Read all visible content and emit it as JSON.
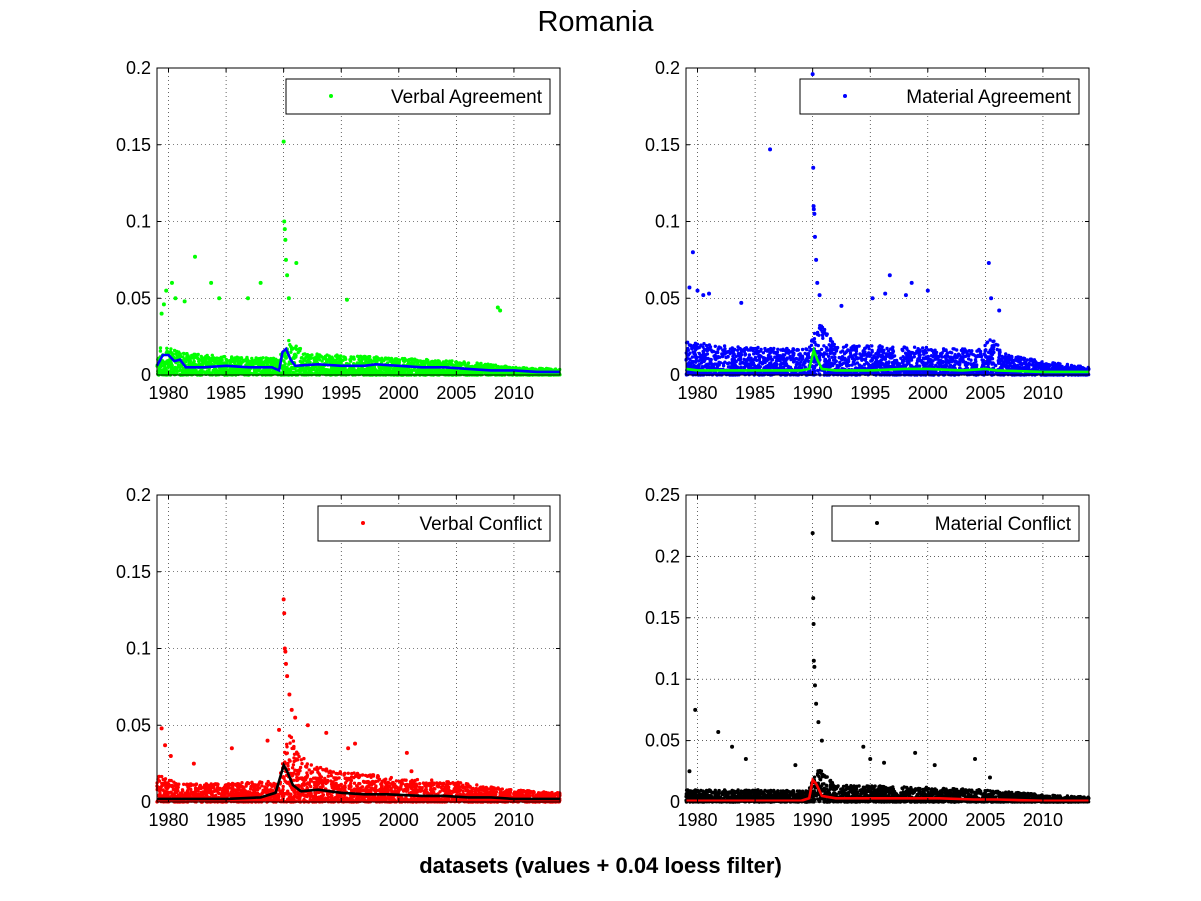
{
  "figure": {
    "title": "Romania",
    "xlabel": "datasets (values + 0.04 loess filter)"
  },
  "chart_data": [
    {
      "type": "scatter",
      "legend": "Verbal Agreement",
      "legend_position": "top-right",
      "point_color": "#00ff00",
      "trend_color": "#0000ff",
      "grid": true,
      "xlim": [
        1979,
        2014
      ],
      "ylim": [
        0,
        0.2
      ],
      "xticks": [
        1980,
        1985,
        1990,
        1995,
        2000,
        2005,
        2010
      ],
      "yticks": [
        0,
        0.05,
        0.1,
        0.15,
        0.2
      ],
      "ytick_labels": [
        "0",
        "0.05",
        "0.1",
        "0.15",
        "0.2"
      ],
      "baseline": [
        [
          1979,
          0.02
        ],
        [
          1981,
          0.015
        ],
        [
          1985,
          0.012
        ],
        [
          1989.5,
          0.011
        ],
        [
          1990.5,
          0.024
        ],
        [
          1992,
          0.014
        ],
        [
          2000,
          0.011
        ],
        [
          2005,
          0.009
        ],
        [
          2008,
          0.007
        ],
        [
          2010,
          0.005
        ],
        [
          2014,
          0.004
        ]
      ],
      "spikes": [
        [
          1979.4,
          0.04
        ],
        [
          1979.6,
          0.046
        ],
        [
          1979.8,
          0.055
        ],
        [
          1980.3,
          0.06
        ],
        [
          1980.6,
          0.05
        ],
        [
          1981.4,
          0.048
        ],
        [
          1982.3,
          0.077
        ],
        [
          1983.7,
          0.06
        ],
        [
          1984.4,
          0.05
        ],
        [
          1986.9,
          0.05
        ],
        [
          1988,
          0.06
        ],
        [
          1990,
          0.152
        ],
        [
          1990.05,
          0.1
        ],
        [
          1990.1,
          0.095
        ],
        [
          1990.15,
          0.088
        ],
        [
          1990.2,
          0.075
        ],
        [
          1990.3,
          0.065
        ],
        [
          1990.45,
          0.05
        ],
        [
          1991.1,
          0.073
        ],
        [
          1995.5,
          0.049
        ],
        [
          2008.6,
          0.044
        ],
        [
          2008.8,
          0.042
        ]
      ],
      "trend": [
        [
          1979,
          0.006
        ],
        [
          1979.5,
          0.013
        ],
        [
          1980,
          0.013
        ],
        [
          1980.5,
          0.009
        ],
        [
          1981,
          0.01
        ],
        [
          1981.5,
          0.005
        ],
        [
          1983,
          0.005
        ],
        [
          1985,
          0.006
        ],
        [
          1987,
          0.005
        ],
        [
          1989,
          0.005
        ],
        [
          1989.6,
          0.003
        ],
        [
          1989.9,
          0.015
        ],
        [
          1990.2,
          0.017
        ],
        [
          1990.6,
          0.01
        ],
        [
          1991,
          0.006
        ],
        [
          1993,
          0.007
        ],
        [
          1995,
          0.006
        ],
        [
          1997,
          0.006
        ],
        [
          1998,
          0.007
        ],
        [
          2000,
          0.006
        ],
        [
          2002,
          0.005
        ],
        [
          2004,
          0.005
        ],
        [
          2006,
          0.004
        ],
        [
          2008,
          0.003
        ],
        [
          2010,
          0.003
        ],
        [
          2012,
          0.002
        ],
        [
          2014,
          0.002
        ]
      ]
    },
    {
      "type": "scatter",
      "legend": "Material Agreement",
      "legend_position": "top-right",
      "point_color": "#0000ff",
      "trend_color": "#00ff00",
      "grid": true,
      "xlim": [
        1979,
        2014
      ],
      "ylim": [
        0,
        0.2
      ],
      "xticks": [
        1980,
        1985,
        1990,
        1995,
        2000,
        2005,
        2010
      ],
      "yticks": [
        0,
        0.05,
        0.1,
        0.15,
        0.2
      ],
      "ytick_labels": [
        "0",
        "0.05",
        "0.1",
        "0.15",
        "0.2"
      ],
      "baseline": [
        [
          1979,
          0.022
        ],
        [
          1981,
          0.02
        ],
        [
          1985,
          0.018
        ],
        [
          1989.5,
          0.017
        ],
        [
          1990.5,
          0.035
        ],
        [
          1992,
          0.02
        ],
        [
          2000,
          0.018
        ],
        [
          2004.5,
          0.017
        ],
        [
          2005.5,
          0.025
        ],
        [
          2007,
          0.013
        ],
        [
          2010,
          0.009
        ],
        [
          2014,
          0.005
        ]
      ],
      "spikes": [
        [
          1979.3,
          0.057
        ],
        [
          1979.6,
          0.08
        ],
        [
          1980,
          0.055
        ],
        [
          1980.5,
          0.052
        ],
        [
          1981,
          0.053
        ],
        [
          1983.8,
          0.047
        ],
        [
          1986.3,
          0.147
        ],
        [
          1990,
          0.196
        ],
        [
          1990.05,
          0.135
        ],
        [
          1990.08,
          0.11
        ],
        [
          1990.1,
          0.108
        ],
        [
          1990.15,
          0.105
        ],
        [
          1990.2,
          0.09
        ],
        [
          1990.3,
          0.075
        ],
        [
          1990.4,
          0.06
        ],
        [
          1990.6,
          0.052
        ],
        [
          1992.5,
          0.045
        ],
        [
          1995.2,
          0.05
        ],
        [
          1996.3,
          0.053
        ],
        [
          1996.7,
          0.065
        ],
        [
          1998.1,
          0.052
        ],
        [
          1998.6,
          0.06
        ],
        [
          2000,
          0.055
        ],
        [
          2005.3,
          0.073
        ],
        [
          2005.5,
          0.05
        ],
        [
          2006.2,
          0.042
        ]
      ],
      "trend": [
        [
          1979,
          0.004
        ],
        [
          1980,
          0.003
        ],
        [
          1985,
          0.003
        ],
        [
          1989,
          0.003
        ],
        [
          1989.7,
          0.004
        ],
        [
          1990.1,
          0.016
        ],
        [
          1990.4,
          0.01
        ],
        [
          1990.8,
          0.004
        ],
        [
          1992,
          0.003
        ],
        [
          1995,
          0.003
        ],
        [
          1998,
          0.004
        ],
        [
          2000,
          0.004
        ],
        [
          2003,
          0.003
        ],
        [
          2005,
          0.004
        ],
        [
          2006,
          0.003
        ],
        [
          2010,
          0.002
        ],
        [
          2014,
          0.002
        ]
      ]
    },
    {
      "type": "scatter",
      "legend": "Verbal Conflict",
      "legend_position": "top-right",
      "point_color": "#ff0000",
      "trend_color": "#000000",
      "grid": true,
      "xlim": [
        1979,
        2014
      ],
      "ylim": [
        0,
        0.2
      ],
      "xticks": [
        1980,
        1985,
        1990,
        1995,
        2000,
        2005,
        2010
      ],
      "yticks": [
        0,
        0.05,
        0.1,
        0.15,
        0.2
      ],
      "ytick_labels": [
        "0",
        "0.05",
        "0.1",
        "0.15",
        "0.2"
      ],
      "baseline": [
        [
          1979,
          0.018
        ],
        [
          1981,
          0.012
        ],
        [
          1985,
          0.012
        ],
        [
          1989.5,
          0.014
        ],
        [
          1990.5,
          0.045
        ],
        [
          1992,
          0.025
        ],
        [
          1995,
          0.02
        ],
        [
          2000,
          0.016
        ],
        [
          2005,
          0.013
        ],
        [
          2010,
          0.008
        ],
        [
          2014,
          0.006
        ]
      ],
      "spikes": [
        [
          1979.4,
          0.048
        ],
        [
          1979.7,
          0.037
        ],
        [
          1980.2,
          0.03
        ],
        [
          1982.2,
          0.025
        ],
        [
          1985.5,
          0.035
        ],
        [
          1988.6,
          0.04
        ],
        [
          1989.6,
          0.047
        ],
        [
          1990,
          0.132
        ],
        [
          1990.05,
          0.123
        ],
        [
          1990.1,
          0.1
        ],
        [
          1990.15,
          0.098
        ],
        [
          1990.2,
          0.09
        ],
        [
          1990.3,
          0.082
        ],
        [
          1990.5,
          0.07
        ],
        [
          1990.7,
          0.06
        ],
        [
          1991,
          0.055
        ],
        [
          1992.1,
          0.05
        ],
        [
          1993.7,
          0.045
        ],
        [
          1995.6,
          0.035
        ],
        [
          1996.2,
          0.038
        ],
        [
          2000.7,
          0.032
        ],
        [
          2001.1,
          0.02
        ]
      ],
      "trend": [
        [
          1979,
          0.002
        ],
        [
          1980,
          0.002
        ],
        [
          1985,
          0.002
        ],
        [
          1988,
          0.003
        ],
        [
          1989.3,
          0.006
        ],
        [
          1990,
          0.024
        ],
        [
          1990.3,
          0.02
        ],
        [
          1990.8,
          0.011
        ],
        [
          1991.5,
          0.007
        ],
        [
          1993,
          0.008
        ],
        [
          1995,
          0.006
        ],
        [
          1997,
          0.005
        ],
        [
          1999,
          0.005
        ],
        [
          2002,
          0.004
        ],
        [
          2004,
          0.004
        ],
        [
          2006,
          0.003
        ],
        [
          2008,
          0.003
        ],
        [
          2010,
          0.002
        ],
        [
          2014,
          0.002
        ]
      ]
    },
    {
      "type": "scatter",
      "legend": "Material Conflict",
      "legend_position": "top-right",
      "point_color": "#000000",
      "trend_color": "#ff0000",
      "grid": true,
      "xlim": [
        1979,
        2014
      ],
      "ylim": [
        0,
        0.25
      ],
      "xticks": [
        1980,
        1985,
        1990,
        1995,
        2000,
        2005,
        2010
      ],
      "yticks": [
        0,
        0.05,
        0.1,
        0.15,
        0.2,
        0.25
      ],
      "ytick_labels": [
        "0",
        "0.05",
        "0.1",
        "0.15",
        "0.2",
        "0.25"
      ],
      "baseline": [
        [
          1979,
          0.01
        ],
        [
          1985,
          0.01
        ],
        [
          1989.5,
          0.009
        ],
        [
          1990.5,
          0.028
        ],
        [
          1992,
          0.014
        ],
        [
          2000,
          0.012
        ],
        [
          2005,
          0.01
        ],
        [
          2010,
          0.006
        ],
        [
          2014,
          0.004
        ]
      ],
      "spikes": [
        [
          1979.3,
          0.025
        ],
        [
          1979.8,
          0.075
        ],
        [
          1981.8,
          0.057
        ],
        [
          1983,
          0.045
        ],
        [
          1984.2,
          0.035
        ],
        [
          1988.5,
          0.03
        ],
        [
          1990,
          0.219
        ],
        [
          1990.05,
          0.166
        ],
        [
          1990.08,
          0.145
        ],
        [
          1990.1,
          0.115
        ],
        [
          1990.15,
          0.11
        ],
        [
          1990.2,
          0.095
        ],
        [
          1990.3,
          0.08
        ],
        [
          1990.5,
          0.065
        ],
        [
          1990.8,
          0.05
        ],
        [
          1994.4,
          0.045
        ],
        [
          1995,
          0.035
        ],
        [
          1996.2,
          0.032
        ],
        [
          1998.9,
          0.04
        ],
        [
          2000.6,
          0.03
        ],
        [
          2004.1,
          0.035
        ],
        [
          2005.4,
          0.02
        ]
      ],
      "trend": [
        [
          1979,
          0.001
        ],
        [
          1985,
          0.001
        ],
        [
          1989,
          0.001
        ],
        [
          1989.7,
          0.003
        ],
        [
          1990,
          0.018
        ],
        [
          1990.3,
          0.015
        ],
        [
          1990.8,
          0.005
        ],
        [
          1992,
          0.003
        ],
        [
          1995,
          0.003
        ],
        [
          1998,
          0.003
        ],
        [
          2001,
          0.003
        ],
        [
          2004,
          0.002
        ],
        [
          2006,
          0.002
        ],
        [
          2010,
          0.001
        ],
        [
          2014,
          0.001
        ]
      ]
    }
  ]
}
